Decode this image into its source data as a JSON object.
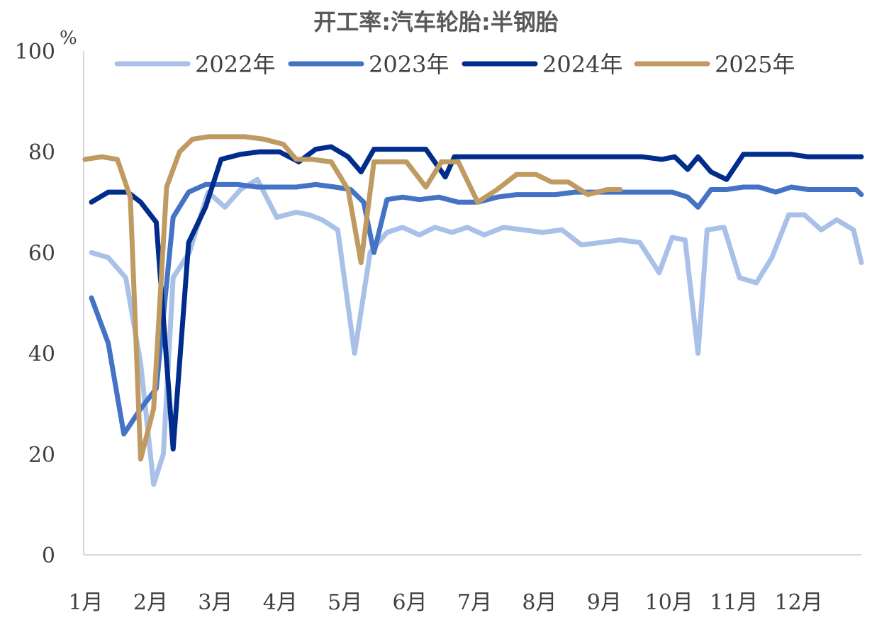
{
  "chart_data": {
    "type": "line",
    "title": "开工率:汽车轮胎:半钢胎",
    "unit": "%",
    "ylim": [
      0,
      100
    ],
    "y_ticks": [
      "0",
      "20",
      "40",
      "60",
      "80",
      "100"
    ],
    "xlim": [
      0,
      12
    ],
    "x_ticks": [
      "1月",
      "2月",
      "3月",
      "4月",
      "5月",
      "6月",
      "7月",
      "8月",
      "9月",
      "10月",
      "11月",
      "12月"
    ],
    "legend_position": "top",
    "grid": false,
    "series": [
      {
        "name": "2022年",
        "color": "#a9c0e8",
        "x": [
          0.12,
          0.38,
          0.65,
          0.88,
          1.08,
          1.23,
          1.38,
          1.63,
          1.92,
          2.18,
          2.42,
          2.68,
          2.98,
          3.28,
          3.48,
          3.68,
          3.92,
          4.18,
          4.42,
          4.48,
          4.68,
          4.92,
          5.18,
          5.42,
          5.68,
          5.92,
          6.18,
          6.48,
          6.78,
          7.08,
          7.38,
          7.68,
          7.98,
          8.28,
          8.58,
          8.88,
          9.08,
          9.28,
          9.48,
          9.62,
          9.88,
          10.12,
          10.38,
          10.62,
          10.88,
          11.12,
          11.38,
          11.62,
          11.88,
          12.0
        ],
        "values": [
          60,
          59,
          55,
          38,
          14,
          20,
          55,
          60,
          72,
          69,
          72.5,
          74.5,
          67,
          68,
          67.5,
          66.5,
          64.5,
          40,
          60,
          61,
          64,
          65,
          63.5,
          65,
          64,
          65,
          63.5,
          65,
          64.5,
          64,
          64.5,
          61.5,
          62,
          62.5,
          62,
          56,
          63,
          62.5,
          40,
          64.5,
          65,
          55,
          54,
          59,
          67.5,
          67.5,
          64.5,
          66.5,
          64.5,
          58
        ]
      },
      {
        "name": "2023年",
        "color": "#4472c4",
        "x": [
          0.12,
          0.38,
          0.62,
          0.88,
          1.12,
          1.38,
          1.62,
          1.88,
          2.12,
          2.38,
          2.68,
          2.98,
          3.28,
          3.58,
          3.88,
          4.12,
          4.32,
          4.48,
          4.68,
          4.92,
          5.18,
          5.48,
          5.78,
          6.08,
          6.38,
          6.68,
          6.98,
          7.28,
          7.58,
          7.88,
          8.18,
          8.48,
          8.78,
          9.08,
          9.32,
          9.48,
          9.68,
          9.92,
          10.18,
          10.42,
          10.68,
          10.92,
          11.18,
          11.42,
          11.68,
          11.92,
          12.0
        ],
        "values": [
          51,
          42,
          24,
          29,
          33,
          67,
          72,
          73.5,
          73.5,
          73.5,
          73,
          73,
          73,
          73.5,
          73,
          72.5,
          70,
          60,
          70.5,
          71,
          70.5,
          71,
          70,
          70,
          71,
          71.5,
          71.5,
          71.5,
          72,
          72,
          72,
          72,
          72,
          72,
          71,
          69,
          72.5,
          72.5,
          73,
          73,
          72,
          73,
          72.5,
          72.5,
          72.5,
          72.5,
          71.5
        ]
      },
      {
        "name": "2024年",
        "color": "#002c8c",
        "x": [
          0.12,
          0.38,
          0.68,
          0.88,
          1.12,
          1.38,
          1.62,
          1.88,
          2.12,
          2.42,
          2.72,
          3.02,
          3.32,
          3.58,
          3.82,
          4.08,
          4.28,
          4.48,
          4.68,
          4.98,
          5.28,
          5.58,
          5.72,
          5.92,
          6.22,
          6.52,
          6.82,
          7.12,
          7.42,
          7.72,
          8.02,
          8.32,
          8.62,
          8.92,
          9.12,
          9.32,
          9.48,
          9.68,
          9.92,
          10.18,
          10.42,
          10.68,
          10.92,
          11.18,
          11.42,
          11.68,
          11.92,
          12.0
        ],
        "values": [
          70,
          72,
          72,
          70,
          66,
          21,
          62,
          69,
          78.5,
          79.5,
          80,
          80,
          78,
          80.5,
          81,
          79,
          76,
          80.5,
          80.5,
          80.5,
          80.5,
          75,
          79,
          79,
          79,
          79,
          79,
          79,
          79,
          79,
          79,
          79,
          79,
          78.5,
          79,
          76.5,
          79,
          76,
          74.5,
          79.5,
          79.5,
          79.5,
          79.5,
          79,
          79,
          79,
          79,
          79
        ]
      },
      {
        "name": "2025年",
        "color": "#bf9b62",
        "x": [
          0.02,
          0.28,
          0.52,
          0.72,
          0.88,
          1.08,
          1.28,
          1.48,
          1.68,
          1.92,
          2.18,
          2.48,
          2.78,
          3.08,
          3.28,
          3.52,
          3.82,
          4.08,
          4.28,
          4.48,
          4.68,
          4.98,
          5.28,
          5.52,
          5.78,
          6.08,
          6.38,
          6.68,
          6.98,
          7.22,
          7.48,
          7.78,
          8.08,
          8.28
        ],
        "values": [
          78.5,
          79,
          78.5,
          71,
          19,
          29,
          73,
          80,
          82.5,
          83,
          83,
          83,
          82.5,
          81.5,
          78.5,
          78.5,
          78,
          72.5,
          58,
          78,
          78,
          78,
          73,
          78,
          78,
          70,
          72.5,
          75.5,
          75.5,
          74,
          74,
          71.5,
          72.5,
          72.5
        ]
      }
    ]
  }
}
